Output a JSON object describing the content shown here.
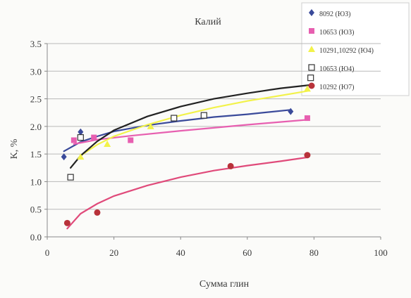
{
  "chart_data": {
    "type": "scatter",
    "title": "Калий",
    "xlabel": "Сумма глин",
    "ylabel": "K, %",
    "xlim": [
      0,
      100
    ],
    "ylim": [
      0.0,
      3.5
    ],
    "xticks": [
      0,
      20,
      40,
      60,
      80,
      100
    ],
    "yticks": [
      0.0,
      0.5,
      1.0,
      1.5,
      2.0,
      2.5,
      3.0,
      3.5
    ],
    "xtick_labels": [
      "0",
      "20",
      "40",
      "60",
      "80",
      "100"
    ],
    "ytick_labels": [
      "0.0",
      "0.5",
      "1.0",
      "1.5",
      "2.0",
      "2.5",
      "3.0",
      "3.5"
    ],
    "grid": "horizontal",
    "legend_position": "top-right",
    "series": [
      {
        "name": "8092  (ЮЗ)",
        "marker": "diamond",
        "color": "#3a4a9a",
        "points": [
          [
            5,
            1.45
          ],
          [
            10,
            1.9
          ],
          [
            73,
            2.27
          ]
        ],
        "trend": [
          [
            5,
            1.55
          ],
          [
            10,
            1.72
          ],
          [
            15,
            1.82
          ],
          [
            20,
            1.91
          ],
          [
            30,
            2.02
          ],
          [
            40,
            2.1
          ],
          [
            50,
            2.17
          ],
          [
            60,
            2.22
          ],
          [
            73,
            2.3
          ]
        ]
      },
      {
        "name": "10653 (ЮЗ)",
        "marker": "square",
        "color": "#e75fb0",
        "points": [
          [
            8,
            1.75
          ],
          [
            14,
            1.8
          ],
          [
            25,
            1.75
          ],
          [
            78,
            2.15
          ]
        ],
        "trend": [
          [
            8,
            1.68
          ],
          [
            15,
            1.76
          ],
          [
            25,
            1.83
          ],
          [
            40,
            1.92
          ],
          [
            60,
            2.03
          ],
          [
            78,
            2.12
          ]
        ]
      },
      {
        "name": "10291,10292 (Ю4)",
        "marker": "triangle",
        "color": "#f2f24a",
        "points": [
          [
            10,
            1.45
          ],
          [
            18,
            1.68
          ],
          [
            31,
            2.0
          ],
          [
            78,
            2.68
          ]
        ],
        "trend": [
          [
            10,
            1.47
          ],
          [
            15,
            1.67
          ],
          [
            20,
            1.82
          ],
          [
            30,
            2.03
          ],
          [
            40,
            2.2
          ],
          [
            50,
            2.34
          ],
          [
            60,
            2.46
          ],
          [
            70,
            2.56
          ],
          [
            78,
            2.64
          ]
        ]
      },
      {
        "name": "10653 (Ю4)",
        "marker": "open-square",
        "color": "#333333",
        "points": [
          [
            7,
            1.08
          ],
          [
            10,
            1.8
          ],
          [
            38,
            2.15
          ],
          [
            47,
            2.2
          ],
          [
            79,
            2.88
          ]
        ],
        "trend": [
          [
            7,
            1.25
          ],
          [
            10,
            1.47
          ],
          [
            15,
            1.73
          ],
          [
            20,
            1.93
          ],
          [
            30,
            2.18
          ],
          [
            40,
            2.36
          ],
          [
            50,
            2.5
          ],
          [
            60,
            2.6
          ],
          [
            70,
            2.69
          ],
          [
            79,
            2.75
          ]
        ]
      },
      {
        "name": "10292 (Ю7)",
        "marker": "circle",
        "color": "#b8323a",
        "points": [
          [
            6,
            0.25
          ],
          [
            15,
            0.44
          ],
          [
            55,
            1.28
          ],
          [
            78,
            1.48
          ]
        ],
        "trend": [
          [
            6,
            0.15
          ],
          [
            10,
            0.42
          ],
          [
            15,
            0.6
          ],
          [
            20,
            0.74
          ],
          [
            30,
            0.93
          ],
          [
            40,
            1.08
          ],
          [
            50,
            1.2
          ],
          [
            60,
            1.29
          ],
          [
            70,
            1.37
          ],
          [
            78,
            1.44
          ]
        ]
      }
    ]
  }
}
